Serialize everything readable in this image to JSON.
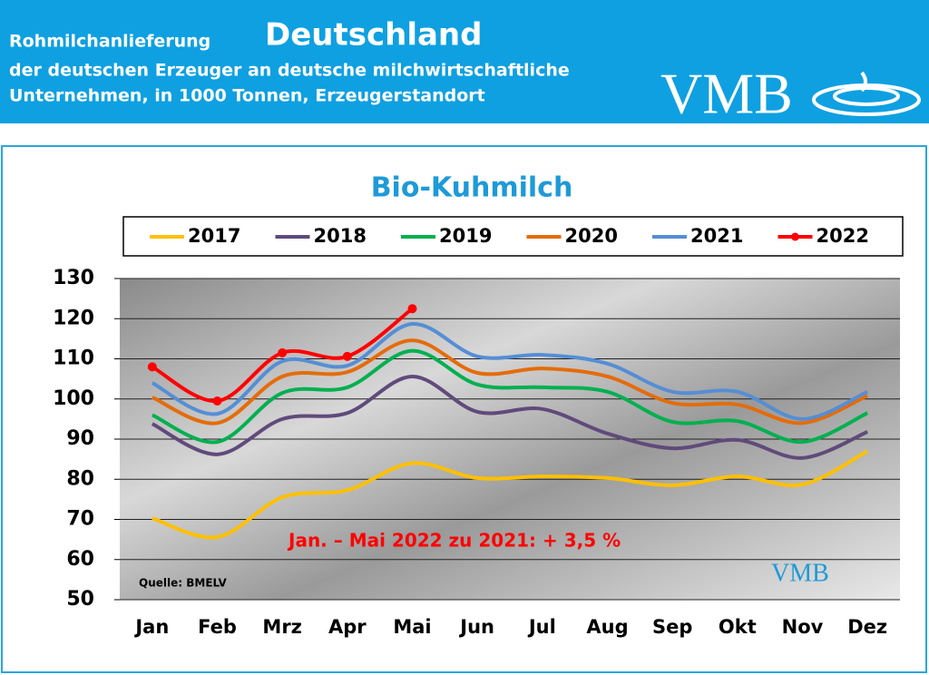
{
  "header": {
    "title_prefix": "Rohmilchanlieferung",
    "title_main": "Deutschland",
    "line2": "der deutschen Erzeuger an deutsche milchwirtschaftliche",
    "line3": "Unternehmen, in 1000 Tonnen, Erzeugerstandort",
    "logo": "VMB"
  },
  "chart_data": {
    "type": "line",
    "title": "Bio-Kuhmilch",
    "annotation": "Jan. – Mai 2022 zu 2021: + 3,5 %",
    "source": "Quelle: BMELV",
    "logo": "VMB",
    "categories": [
      "Jan",
      "Feb",
      "Mrz",
      "Apr",
      "Mai",
      "Jun",
      "Jul",
      "Aug",
      "Sep",
      "Okt",
      "Nov",
      "Dez"
    ],
    "series": [
      {
        "name": "2017",
        "color": "#ffc000",
        "values": [
          70.3,
          65.6,
          75.5,
          77.3,
          84,
          80.3,
          80.7,
          80.3,
          78.5,
          80.7,
          78.7,
          87
        ]
      },
      {
        "name": "2018",
        "color": "#604a7b",
        "values": [
          93.8,
          86.2,
          95,
          96.5,
          105.6,
          96.8,
          97.5,
          91.4,
          87.7,
          89.8,
          85.3,
          91.8
        ]
      },
      {
        "name": "2019",
        "color": "#00b050",
        "values": [
          96,
          89.3,
          101.5,
          102.9,
          112,
          103.6,
          102.9,
          101.8,
          94.3,
          94.5,
          89.3,
          96.5
        ]
      },
      {
        "name": "2020",
        "color": "#e46c0a",
        "values": [
          100.4,
          94,
          105.6,
          106.7,
          114.6,
          106.5,
          107.6,
          105.6,
          99,
          98.6,
          94,
          100.8
        ]
      },
      {
        "name": "2021",
        "color": "#558ed5",
        "values": [
          104,
          96.3,
          109.4,
          108.3,
          118.7,
          110.6,
          111,
          108.8,
          101.8,
          101.8,
          95,
          101.8
        ]
      },
      {
        "name": "2022",
        "color": "#ff0000",
        "markers": true,
        "values": [
          108,
          99.5,
          111.5,
          110.6,
          122.5,
          null,
          null,
          null,
          null,
          null,
          null,
          null
        ]
      }
    ],
    "ylim": [
      50,
      130
    ],
    "yticks": [
      50,
      60,
      70,
      80,
      90,
      100,
      110,
      120,
      130
    ],
    "grid": true,
    "legend": "top"
  }
}
